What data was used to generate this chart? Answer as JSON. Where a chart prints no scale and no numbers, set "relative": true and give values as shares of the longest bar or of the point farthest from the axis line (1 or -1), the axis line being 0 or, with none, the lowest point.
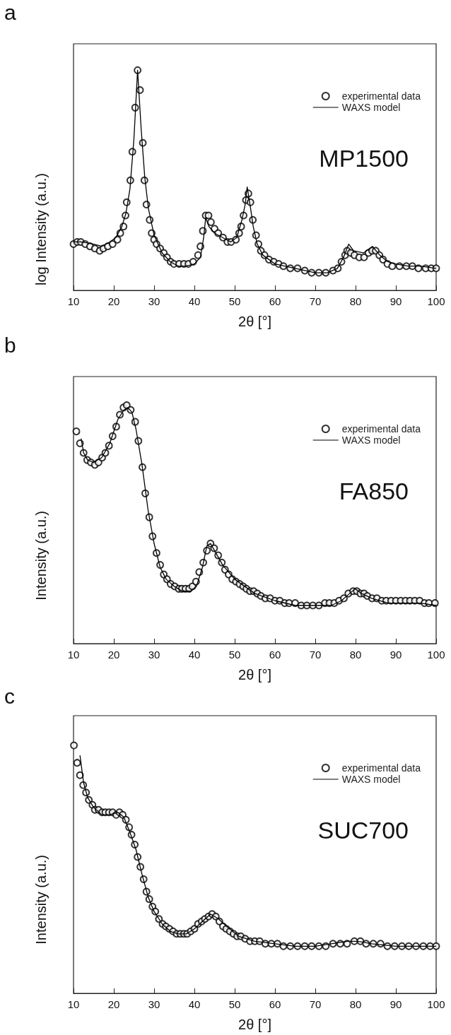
{
  "chart_data": [
    {
      "type": "scatter",
      "annotations": [
        "a",
        "MP1500"
      ],
      "xlabel": "2θ [°]",
      "ylabel": "log Intensity (a.u.)",
      "xlim": [
        10,
        100
      ],
      "xticks": [
        10,
        20,
        30,
        40,
        50,
        60,
        70,
        80,
        90,
        100
      ],
      "relative": true,
      "legend": "top right",
      "series": [
        {
          "name": "experimental data",
          "marker": "circle",
          "color": "#000000",
          "x": [
            10,
            10.9,
            11.8,
            12.9,
            14.1,
            15.3,
            16.5,
            17.4,
            18.5,
            19.7,
            20.9,
            21.6,
            22.4,
            22.9,
            23.2,
            24.1,
            24.6,
            25.3,
            25.9,
            26.5,
            27.2,
            27.6,
            28.1,
            28.9,
            29.4,
            30,
            30.6,
            31.5,
            32.4,
            33.2,
            34.1,
            34.9,
            36.2,
            37.4,
            38.5,
            39.7,
            40.9,
            41.5,
            42.1,
            42.8,
            43.5,
            44.1,
            45,
            45.9,
            47.1,
            48.2,
            49.1,
            50.3,
            51.1,
            51.6,
            52.2,
            52.8,
            53.4,
            53.9,
            54.5,
            55.3,
            55.9,
            56.5,
            57.4,
            58.5,
            59.7,
            60.9,
            62.1,
            63.8,
            65.6,
            67.4,
            69.1,
            70.9,
            72.6,
            74.4,
            75.6,
            76.5,
            77.4,
            77.9,
            78.8,
            79.7,
            80.9,
            82.1,
            83.2,
            84.1,
            85,
            85.9,
            86.8,
            87.9,
            89.1,
            90.9,
            92.6,
            94.1,
            95.6,
            97.4,
            98.8,
            100
          ],
          "values": [
            0.21,
            0.22,
            0.22,
            0.21,
            0.2,
            0.19,
            0.18,
            0.19,
            0.2,
            0.21,
            0.23,
            0.26,
            0.29,
            0.34,
            0.4,
            0.5,
            0.63,
            0.83,
            1,
            0.91,
            0.67,
            0.5,
            0.39,
            0.32,
            0.26,
            0.23,
            0.21,
            0.19,
            0.17,
            0.15,
            0.13,
            0.12,
            0.12,
            0.12,
            0.12,
            0.13,
            0.16,
            0.2,
            0.27,
            0.34,
            0.34,
            0.31,
            0.28,
            0.26,
            0.24,
            0.22,
            0.22,
            0.23,
            0.26,
            0.29,
            0.34,
            0.41,
            0.44,
            0.4,
            0.32,
            0.25,
            0.21,
            0.18,
            0.16,
            0.14,
            0.13,
            0.12,
            0.11,
            0.1,
            0.1,
            0.09,
            0.08,
            0.08,
            0.08,
            0.09,
            0.1,
            0.13,
            0.16,
            0.18,
            0.17,
            0.16,
            0.15,
            0.15,
            0.17,
            0.18,
            0.18,
            0.16,
            0.14,
            0.12,
            0.11,
            0.11,
            0.11,
            0.11,
            0.1,
            0.1,
            0.1,
            0.1
          ]
        },
        {
          "name": "WAXS model",
          "type": "line",
          "marker": "none",
          "color": "#000000",
          "x": [
            10,
            12,
            15,
            17,
            19,
            20.5,
            22,
            23,
            24,
            25,
            25.9,
            26.8,
            27.7,
            28.6,
            30,
            32,
            34,
            36,
            38,
            40,
            41.5,
            42.3,
            42.8,
            43.6,
            45,
            47,
            49,
            50.5,
            51.8,
            52.6,
            53.1,
            53.8,
            54.6,
            55.6,
            57,
            60,
            65,
            70,
            73,
            75.5,
            77,
            78.3,
            79.5,
            82,
            84.2,
            86,
            88,
            90,
            93,
            96,
            100
          ],
          "values": [
            0.22,
            0.22,
            0.21,
            0.2,
            0.22,
            0.24,
            0.29,
            0.35,
            0.46,
            0.69,
            1,
            0.73,
            0.51,
            0.37,
            0.25,
            0.17,
            0.13,
            0.11,
            0.11,
            0.12,
            0.15,
            0.24,
            0.33,
            0.29,
            0.26,
            0.24,
            0.22,
            0.24,
            0.32,
            0.39,
            0.47,
            0.39,
            0.29,
            0.21,
            0.16,
            0.12,
            0.1,
            0.08,
            0.08,
            0.1,
            0.15,
            0.21,
            0.18,
            0.17,
            0.2,
            0.16,
            0.13,
            0.12,
            0.11,
            0.11,
            0.1
          ]
        }
      ]
    },
    {
      "type": "scatter",
      "annotations": [
        "b",
        "FA850"
      ],
      "xlabel": "2θ [°]",
      "ylabel": "Intensity (a.u.)",
      "xlim": [
        10,
        100
      ],
      "xticks": [
        10,
        20,
        30,
        40,
        50,
        60,
        70,
        80,
        90,
        100
      ],
      "relative": true,
      "legend": "top right",
      "series": [
        {
          "name": "experimental data",
          "marker": "circle",
          "color": "#000000",
          "x": [
            10.7,
            11.6,
            12.5,
            13.4,
            14.3,
            15.3,
            16.2,
            17.1,
            17.9,
            18.8,
            19.7,
            20.6,
            21.5,
            22.4,
            23.2,
            24.2,
            25.3,
            26.1,
            27.1,
            27.8,
            28.8,
            29.6,
            30.6,
            31.5,
            32.4,
            33.2,
            34.1,
            35.1,
            36.1,
            36.9,
            37.8,
            38.7,
            39.5,
            40.4,
            41.2,
            42.2,
            43.1,
            44,
            44.9,
            45.9,
            46.8,
            47.6,
            48.5,
            49.4,
            50.3,
            51.2,
            52.1,
            52.9,
            53.8,
            54.7,
            55.6,
            56.5,
            57.6,
            58.8,
            60,
            61.2,
            62.4,
            63.5,
            65,
            66.5,
            67.9,
            69.4,
            70.9,
            72.4,
            73.5,
            74.7,
            75.9,
            77.1,
            78.2,
            79.4,
            80.3,
            81.2,
            82.1,
            82.9,
            84.1,
            85.3,
            86.5,
            87.6,
            88.8,
            90,
            91.2,
            92.4,
            93.5,
            94.7,
            95.9,
            97.1,
            98.2,
            99.7
          ],
          "values": [
            0.89,
            0.84,
            0.8,
            0.77,
            0.76,
            0.75,
            0.76,
            0.78,
            0.8,
            0.83,
            0.87,
            0.91,
            0.96,
            0.99,
            1,
            0.98,
            0.93,
            0.85,
            0.74,
            0.63,
            0.53,
            0.45,
            0.38,
            0.33,
            0.29,
            0.27,
            0.25,
            0.24,
            0.23,
            0.23,
            0.23,
            0.23,
            0.24,
            0.26,
            0.3,
            0.34,
            0.39,
            0.42,
            0.4,
            0.37,
            0.34,
            0.31,
            0.29,
            0.27,
            0.26,
            0.25,
            0.24,
            0.23,
            0.22,
            0.22,
            0.21,
            0.2,
            0.19,
            0.19,
            0.18,
            0.18,
            0.17,
            0.17,
            0.17,
            0.16,
            0.16,
            0.16,
            0.16,
            0.17,
            0.17,
            0.17,
            0.18,
            0.19,
            0.21,
            0.22,
            0.22,
            0.21,
            0.21,
            0.2,
            0.19,
            0.19,
            0.18,
            0.18,
            0.18,
            0.18,
            0.18,
            0.18,
            0.18,
            0.18,
            0.18,
            0.17,
            0.17,
            0.17
          ]
        },
        {
          "name": "WAXS model",
          "type": "line",
          "marker": "none",
          "color": "#000000",
          "x": [
            11.9,
            12.5,
            13.5,
            15,
            17,
            19,
            21,
            22.5,
            23.5,
            24.5,
            25.5,
            27,
            28.5,
            30,
            31.5,
            33,
            35,
            37,
            39,
            40.5,
            42,
            43.1,
            44,
            45,
            47,
            50,
            55,
            60,
            65,
            70,
            74,
            76.5,
            78.5,
            79.9,
            81.5,
            84,
            88,
            92,
            96,
            100
          ],
          "values": [
            0.86,
            0.8,
            0.77,
            0.76,
            0.78,
            0.84,
            0.94,
            0.98,
            0.99,
            0.97,
            0.9,
            0.75,
            0.56,
            0.42,
            0.32,
            0.27,
            0.24,
            0.22,
            0.22,
            0.24,
            0.32,
            0.41,
            0.42,
            0.39,
            0.33,
            0.27,
            0.21,
            0.18,
            0.16,
            0.16,
            0.16,
            0.18,
            0.21,
            0.23,
            0.21,
            0.19,
            0.17,
            0.17,
            0.17,
            0.16
          ]
        }
      ]
    },
    {
      "type": "scatter",
      "annotations": [
        "c",
        "SUC700"
      ],
      "xlabel": "2θ [°]",
      "ylabel": "Intensity (a.u.)",
      "xlim": [
        10,
        100
      ],
      "xticks": [
        10,
        20,
        30,
        40,
        50,
        60,
        70,
        80,
        90,
        100
      ],
      "relative": true,
      "legend": "top right",
      "series": [
        {
          "name": "experimental data",
          "marker": "circle",
          "color": "#000000",
          "x": [
            10.1,
            10.9,
            11.6,
            12.4,
            13.1,
            13.8,
            14.7,
            15.3,
            16.2,
            17.1,
            17.9,
            18.8,
            19.7,
            20.6,
            21.4,
            22.2,
            23,
            23.8,
            24.4,
            25.2,
            25.9,
            26.6,
            27.4,
            28.1,
            28.8,
            29.6,
            30.3,
            31.2,
            32.1,
            32.9,
            33.8,
            34.7,
            35.6,
            36.5,
            37.4,
            38.2,
            39.1,
            40,
            40.9,
            41.8,
            42.6,
            43.5,
            44.4,
            45.3,
            46.2,
            47.1,
            47.9,
            48.8,
            49.7,
            50.6,
            51.5,
            52.6,
            53.8,
            55,
            56.2,
            57.6,
            59.1,
            60.6,
            62.1,
            63.8,
            65.6,
            67.4,
            69.1,
            70.9,
            72.6,
            74.4,
            76.2,
            77.9,
            79.7,
            81.2,
            82.6,
            84.4,
            86.2,
            87.9,
            89.7,
            91.5,
            93.2,
            95,
            96.8,
            98.5,
            100
          ],
          "values": [
            1,
            0.93,
            0.88,
            0.84,
            0.81,
            0.78,
            0.76,
            0.74,
            0.74,
            0.73,
            0.73,
            0.73,
            0.73,
            0.72,
            0.73,
            0.72,
            0.7,
            0.67,
            0.64,
            0.6,
            0.55,
            0.51,
            0.46,
            0.41,
            0.38,
            0.35,
            0.33,
            0.3,
            0.28,
            0.27,
            0.26,
            0.25,
            0.24,
            0.24,
            0.24,
            0.24,
            0.25,
            0.26,
            0.28,
            0.29,
            0.3,
            0.31,
            0.32,
            0.31,
            0.29,
            0.27,
            0.26,
            0.25,
            0.24,
            0.23,
            0.23,
            0.22,
            0.21,
            0.21,
            0.21,
            0.2,
            0.2,
            0.2,
            0.19,
            0.19,
            0.19,
            0.19,
            0.19,
            0.19,
            0.19,
            0.2,
            0.2,
            0.2,
            0.21,
            0.21,
            0.2,
            0.2,
            0.2,
            0.19,
            0.19,
            0.19,
            0.19,
            0.19,
            0.19,
            0.19,
            0.19
          ]
        },
        {
          "name": "WAXS model",
          "type": "line",
          "marker": "none",
          "color": "#000000",
          "x": [
            11.6,
            12.5,
            13.5,
            15,
            17,
            19,
            21,
            22.5,
            24,
            25.5,
            27,
            28.5,
            30,
            32,
            34,
            36,
            38,
            40,
            42,
            44,
            46,
            48,
            51,
            55,
            60,
            65,
            70,
            74,
            78,
            80.5,
            84,
            90,
            95,
            100
          ],
          "values": [
            0.96,
            0.85,
            0.79,
            0.75,
            0.72,
            0.72,
            0.73,
            0.71,
            0.65,
            0.58,
            0.48,
            0.39,
            0.33,
            0.28,
            0.25,
            0.24,
            0.24,
            0.26,
            0.29,
            0.32,
            0.3,
            0.27,
            0.23,
            0.21,
            0.2,
            0.19,
            0.19,
            0.2,
            0.21,
            0.21,
            0.2,
            0.19,
            0.19,
            0.19
          ]
        }
      ]
    }
  ]
}
